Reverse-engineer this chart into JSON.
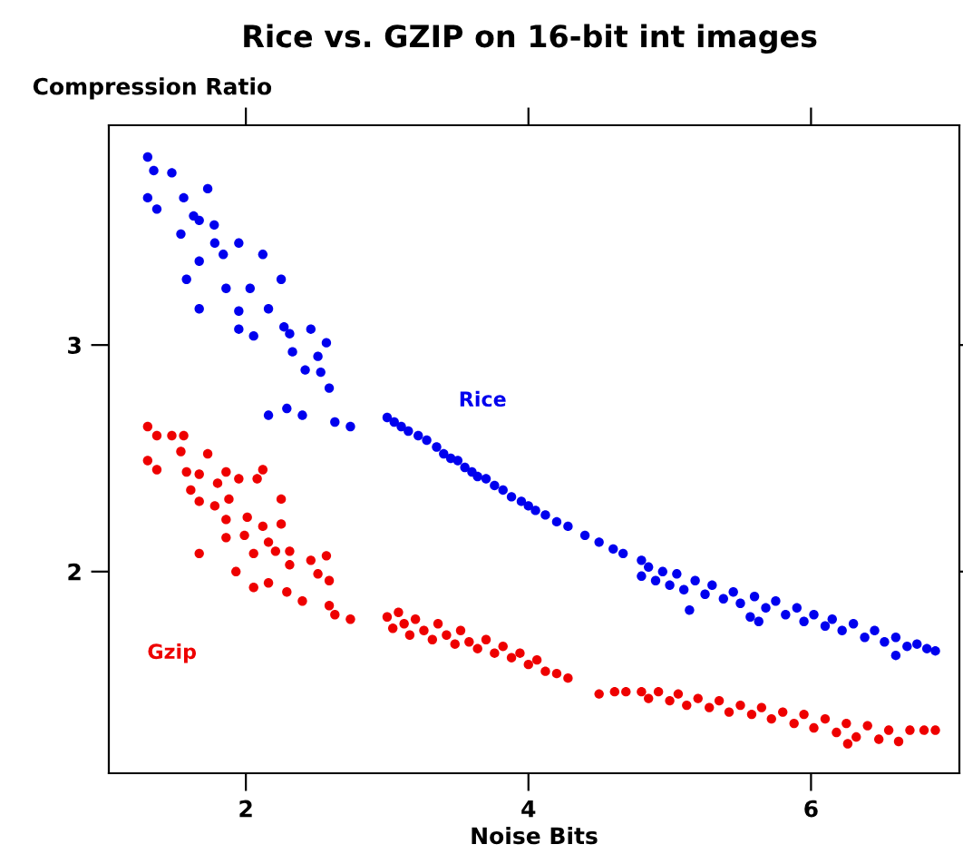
{
  "chart_data": {
    "type": "scatter",
    "title": "Rice vs. GZIP on 16-bit int images",
    "xlabel": "Noise Bits",
    "ylabel": "Compression Ratio",
    "xlim": [
      1.03,
      7.05
    ],
    "ylim": [
      1.11,
      3.97
    ],
    "xticks": [
      2,
      4,
      6
    ],
    "yticks": [
      2,
      3
    ],
    "grid": false,
    "legend": false,
    "marker": "circle",
    "series": [
      {
        "name": "Rice",
        "color": "#0000ee",
        "x": [
          1.305,
          1.348,
          1.476,
          1.305,
          1.37,
          1.56,
          1.73,
          1.54,
          1.67,
          1.776,
          1.67,
          1.58,
          1.84,
          1.95,
          2.12,
          1.86,
          2.03,
          2.25,
          1.67,
          1.95,
          2.16,
          2.27,
          1.95,
          2.055,
          2.31,
          2.46,
          2.33,
          2.51,
          2.57,
          2.42,
          2.53,
          2.59,
          2.16,
          2.29,
          2.4,
          2.63,
          2.74,
          1.63,
          1.78,
          3.0,
          3.05,
          3.1,
          3.15,
          3.22,
          3.28,
          3.35,
          3.4,
          3.45,
          3.5,
          3.55,
          3.6,
          3.64,
          3.7,
          3.76,
          3.82,
          3.88,
          3.95,
          4.0,
          4.05,
          4.12,
          4.2,
          4.28,
          4.4,
          4.5,
          4.6,
          4.67,
          4.8,
          4.8,
          4.85,
          4.9,
          4.95,
          5.0,
          5.05,
          5.1,
          5.14,
          5.18,
          5.25,
          5.3,
          5.38,
          5.45,
          5.5,
          5.57,
          5.6,
          5.63,
          5.68,
          5.75,
          5.82,
          5.9,
          5.95,
          6.02,
          6.1,
          6.15,
          6.22,
          6.3,
          6.38,
          6.45,
          6.52,
          6.6,
          6.6,
          6.68,
          6.75,
          6.82,
          6.88
        ],
        "values": [
          3.83,
          3.77,
          3.76,
          3.65,
          3.6,
          3.65,
          3.69,
          3.49,
          3.55,
          3.53,
          3.37,
          3.29,
          3.4,
          3.45,
          3.4,
          3.25,
          3.25,
          3.29,
          3.16,
          3.15,
          3.16,
          3.08,
          3.07,
          3.04,
          3.05,
          3.07,
          2.97,
          2.95,
          3.01,
          2.89,
          2.88,
          2.81,
          2.69,
          2.72,
          2.69,
          2.66,
          2.64,
          3.57,
          3.45,
          2.68,
          2.66,
          2.64,
          2.62,
          2.6,
          2.58,
          2.55,
          2.52,
          2.5,
          2.49,
          2.46,
          2.44,
          2.42,
          2.41,
          2.38,
          2.36,
          2.33,
          2.31,
          2.29,
          2.27,
          2.25,
          2.22,
          2.2,
          2.16,
          2.13,
          2.1,
          2.08,
          2.05,
          1.98,
          2.02,
          1.96,
          2.0,
          1.94,
          1.99,
          1.92,
          1.83,
          1.96,
          1.9,
          1.94,
          1.88,
          1.91,
          1.86,
          1.8,
          1.89,
          1.78,
          1.84,
          1.87,
          1.81,
          1.84,
          1.78,
          1.81,
          1.76,
          1.79,
          1.74,
          1.77,
          1.71,
          1.74,
          1.69,
          1.63,
          1.71,
          1.67,
          1.68,
          1.66,
          1.65
        ]
      },
      {
        "name": "Gzip",
        "color": "#ee0000",
        "x": [
          1.305,
          1.37,
          1.476,
          1.56,
          1.305,
          1.37,
          1.54,
          1.73,
          1.58,
          1.67,
          1.86,
          2.12,
          1.61,
          1.8,
          1.95,
          2.08,
          1.67,
          1.78,
          1.88,
          2.25,
          1.86,
          2.01,
          2.12,
          2.25,
          1.86,
          1.99,
          2.16,
          2.31,
          1.67,
          2.055,
          2.21,
          2.46,
          2.57,
          1.93,
          2.31,
          2.51,
          2.055,
          2.16,
          2.29,
          2.4,
          2.59,
          2.59,
          2.63,
          2.74,
          3.0,
          3.04,
          3.08,
          3.12,
          3.16,
          3.2,
          3.26,
          3.32,
          3.36,
          3.42,
          3.48,
          3.52,
          3.58,
          3.64,
          3.7,
          3.76,
          3.82,
          3.88,
          3.94,
          4.0,
          4.06,
          4.12,
          4.2,
          4.28,
          4.5,
          4.61,
          4.69,
          4.8,
          4.85,
          4.92,
          5.0,
          5.06,
          5.12,
          5.2,
          5.28,
          5.35,
          5.42,
          5.5,
          5.58,
          5.65,
          5.72,
          5.8,
          5.88,
          5.95,
          6.02,
          6.1,
          6.18,
          6.26,
          6.25,
          6.32,
          6.4,
          6.48,
          6.55,
          6.62,
          6.7,
          6.8,
          6.88
        ],
        "values": [
          2.64,
          2.6,
          2.6,
          2.6,
          2.49,
          2.45,
          2.53,
          2.52,
          2.44,
          2.43,
          2.44,
          2.45,
          2.36,
          2.39,
          2.41,
          2.41,
          2.31,
          2.29,
          2.32,
          2.32,
          2.23,
          2.24,
          2.2,
          2.21,
          2.15,
          2.16,
          2.13,
          2.09,
          2.08,
          2.08,
          2.09,
          2.05,
          2.07,
          2.0,
          2.03,
          1.99,
          1.93,
          1.95,
          1.91,
          1.87,
          1.96,
          1.85,
          1.81,
          1.79,
          1.8,
          1.75,
          1.82,
          1.77,
          1.72,
          1.79,
          1.74,
          1.7,
          1.77,
          1.72,
          1.68,
          1.74,
          1.69,
          1.66,
          1.7,
          1.64,
          1.67,
          1.62,
          1.64,
          1.59,
          1.61,
          1.56,
          1.55,
          1.53,
          1.46,
          1.47,
          1.47,
          1.47,
          1.44,
          1.47,
          1.43,
          1.46,
          1.41,
          1.44,
          1.4,
          1.43,
          1.38,
          1.41,
          1.37,
          1.4,
          1.35,
          1.38,
          1.33,
          1.37,
          1.31,
          1.35,
          1.29,
          1.24,
          1.33,
          1.27,
          1.32,
          1.26,
          1.3,
          1.25,
          1.3,
          1.3,
          1.3
        ]
      }
    ]
  }
}
